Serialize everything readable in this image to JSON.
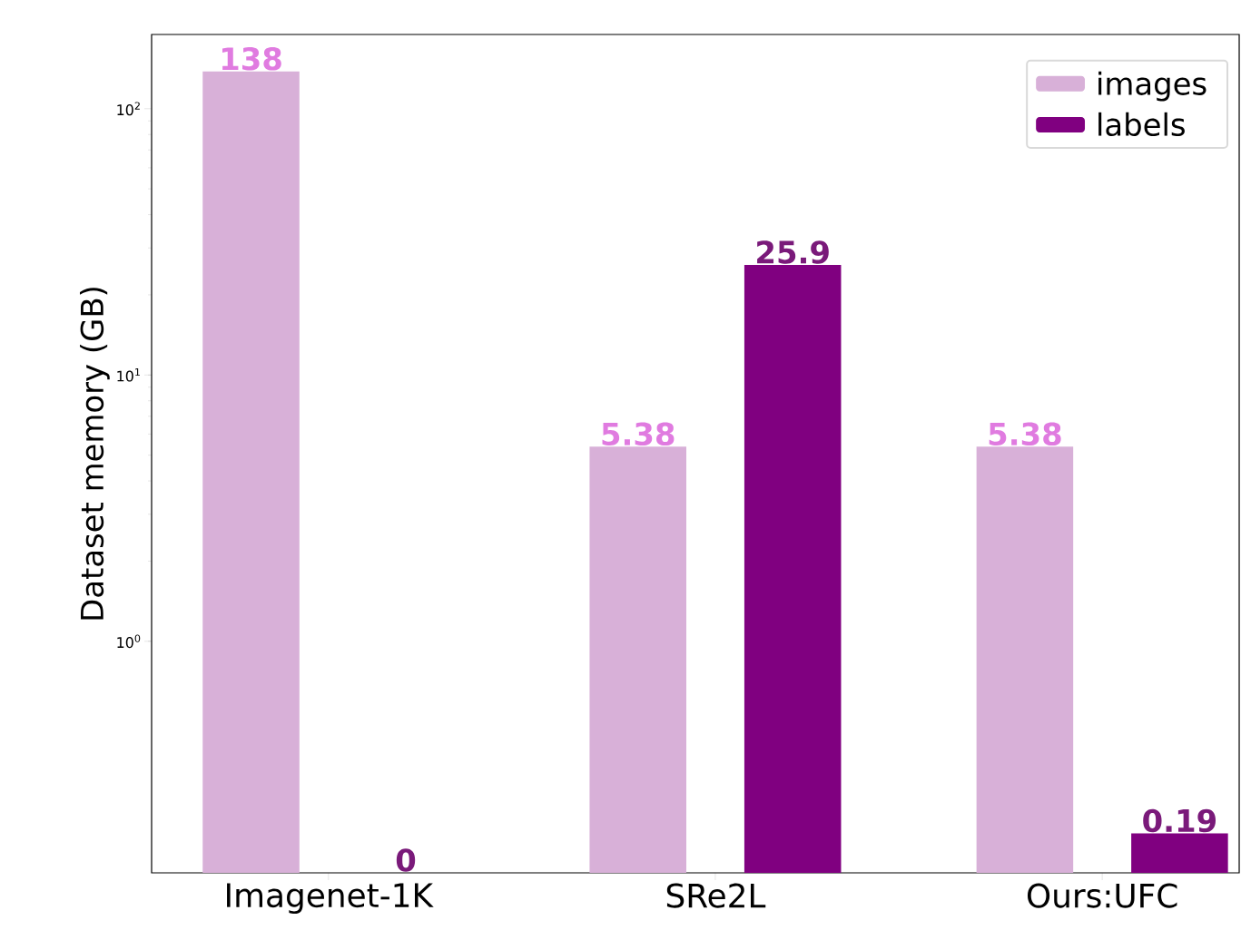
{
  "chart_data": {
    "type": "bar",
    "ylabel": "Dataset memory (GB)",
    "log": "y",
    "categories": [
      "Imagenet-1K",
      "SRe2L",
      "Ours:UFC"
    ],
    "series": [
      {
        "name": "images",
        "color": "#d8b0d8",
        "values": [
          138,
          5.38,
          5.38
        ],
        "value_labels": [
          "138",
          "5.38",
          "5.38"
        ]
      },
      {
        "name": "labels",
        "color": "#800080",
        "values": [
          null,
          25.9,
          0.19
        ],
        "value_labels": [
          "0",
          "25.9",
          "0.19"
        ]
      }
    ],
    "ylim": [
      0.135,
      190
    ],
    "yticks": [
      {
        "value": 1,
        "label": "10$^{0}$"
      },
      {
        "value": 10,
        "label": "10$^{1}$"
      },
      {
        "value": 100,
        "label": "10$^{2}$"
      }
    ],
    "grid": false,
    "legend": "top right"
  }
}
